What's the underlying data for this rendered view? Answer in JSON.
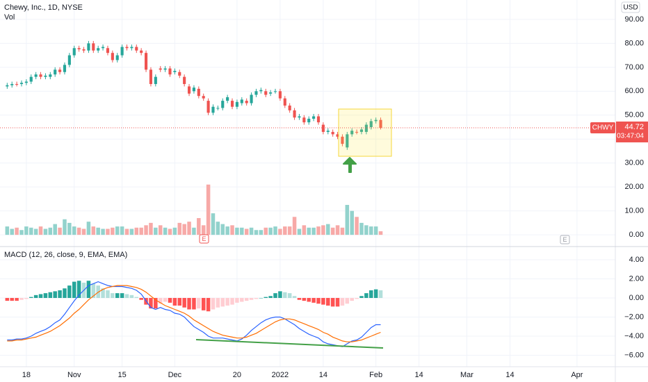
{
  "chart_data": {
    "type": "candlestick",
    "title": "Chewy, Inc., 1D, NYSE",
    "currency": "USD",
    "symbol": "CHWY",
    "countdown": "03:47:04",
    "grid": true,
    "up_color": "#26a69a",
    "down_color": "#ef5350",
    "xlim": [
      -1.5,
      127
    ],
    "xticks": [
      {
        "value": 4,
        "label": "18"
      },
      {
        "value": 14,
        "label": "Nov"
      },
      {
        "value": 24,
        "label": "15"
      },
      {
        "value": 35,
        "label": "Dec"
      },
      {
        "value": 48,
        "label": "20"
      },
      {
        "value": 57,
        "label": "2022"
      },
      {
        "value": 66,
        "label": "14"
      },
      {
        "value": 77,
        "label": "Feb"
      },
      {
        "value": 86,
        "label": "14"
      },
      {
        "value": 96,
        "label": "Mar"
      },
      {
        "value": 105,
        "label": "14"
      },
      {
        "value": 119,
        "label": "Apr"
      }
    ],
    "ylim": [
      -4.9,
      98.1
    ],
    "yticks": [
      {
        "value": 0,
        "label": "0.00"
      },
      {
        "value": 10,
        "label": "10.00"
      },
      {
        "value": 20,
        "label": "20.00"
      },
      {
        "value": 30,
        "label": "30.00"
      },
      {
        "value": 40,
        "label": "40.00"
      },
      {
        "value": 50,
        "label": "50.00"
      },
      {
        "value": 60,
        "label": "60.00"
      },
      {
        "value": 70,
        "label": "70.00"
      },
      {
        "value": 80,
        "label": "80.00"
      },
      {
        "value": 90,
        "label": "90.00"
      }
    ],
    "open": [
      62,
      62.5,
      63,
      63,
      63.5,
      64,
      66,
      67,
      66,
      66,
      67,
      69,
      68,
      71,
      75,
      78,
      77.5,
      77,
      80,
      77,
      78,
      78,
      76,
      73,
      75,
      78.5,
      78,
      78.5,
      77,
      76,
      69,
      63,
      69.5,
      69,
      69.5,
      68,
      68,
      66,
      62,
      60,
      61,
      58,
      56,
      51,
      53,
      53,
      56,
      56,
      53.5,
      55,
      56,
      55,
      58.5,
      60,
      60,
      59,
      60,
      60,
      57,
      54,
      52,
      49,
      49,
      47,
      48.5,
      49.5,
      46,
      43,
      43,
      42,
      41,
      36.5,
      42,
      43,
      43,
      43,
      45,
      47.5,
      48
    ],
    "high": [
      63.5,
      64,
      64,
      64.5,
      65,
      67,
      68,
      68,
      67.5,
      68,
      70,
      70,
      72,
      76,
      79,
      79,
      78.5,
      81,
      81,
      79,
      79.5,
      79,
      77,
      76,
      79.5,
      79.5,
      79.5,
      79.5,
      78,
      77,
      70,
      67,
      70.5,
      70.5,
      70.5,
      69.5,
      69,
      67,
      63,
      62.5,
      62,
      59,
      57,
      54.5,
      54,
      57,
      58.5,
      57,
      56.5,
      57.5,
      57,
      59.5,
      61,
      61.5,
      61,
      60.5,
      61,
      61,
      58,
      55,
      53,
      50.5,
      50,
      49.5,
      50.5,
      50.5,
      47,
      44.5,
      44,
      43,
      42,
      43,
      44.5,
      44,
      45,
      47,
      48.5,
      49,
      49
    ],
    "low": [
      61,
      61.5,
      62,
      62,
      62.5,
      63,
      65,
      65,
      65,
      65,
      66,
      67,
      67,
      70,
      74,
      76.5,
      76,
      76,
      76,
      76,
      77,
      75,
      72,
      72,
      74,
      77,
      77,
      76,
      75,
      68,
      62,
      62,
      68,
      68,
      66,
      67,
      65.5,
      62,
      58,
      59,
      57,
      56,
      50,
      50,
      52,
      52,
      55,
      52.5,
      52.5,
      54,
      54,
      54,
      57.5,
      59,
      57.5,
      58,
      59,
      56,
      53,
      51,
      48,
      48,
      46,
      46,
      47.5,
      46,
      42,
      42,
      41,
      40,
      37,
      35.5,
      41,
      42,
      42,
      42,
      44,
      46.5,
      44
    ],
    "close": [
      62.5,
      63,
      62.8,
      63.5,
      64,
      66,
      67,
      66,
      66.5,
      67,
      69,
      68,
      71,
      75,
      78,
      77.5,
      77,
      80,
      77,
      78,
      78.5,
      76,
      73,
      75,
      78.5,
      78,
      78.5,
      77,
      76,
      69,
      63,
      66,
      69,
      69.5,
      67,
      68.5,
      66.5,
      63,
      59,
      61.5,
      58,
      57,
      51,
      53.5,
      53,
      56,
      57.5,
      53.5,
      55.5,
      56.5,
      55,
      58.5,
      60,
      60.5,
      58.5,
      59.5,
      60,
      57,
      54,
      52,
      49,
      49.5,
      47,
      48.5,
      49.5,
      47,
      43,
      43.5,
      42,
      41,
      38,
      42,
      43.5,
      42.8,
      44,
      46,
      47.5,
      48,
      44.72
    ],
    "volume": {
      "name": "Vol",
      "up_color": "#92d2cc",
      "down_color": "#f7a9a7",
      "values": [
        3.5,
        2.5,
        3,
        2,
        3.5,
        3,
        2.5,
        3.5,
        2.5,
        3,
        4.5,
        3,
        6.5,
        5,
        3.5,
        3,
        2.5,
        5.5,
        3.5,
        3,
        2.5,
        2.5,
        3,
        3.5,
        3.5,
        2.5,
        2.5,
        3,
        3,
        4,
        5,
        3,
        4,
        3,
        2.5,
        3,
        5,
        4.5,
        5.5,
        3,
        7,
        4,
        21,
        9,
        5.5,
        4.5,
        3.5,
        4,
        3,
        3,
        2.5,
        3,
        2,
        2,
        3,
        3,
        3.5,
        2.5,
        3.5,
        3.5,
        7.5,
        2.5,
        4,
        3,
        3,
        3.5,
        4,
        4.5,
        3,
        4,
        3,
        12.5,
        10,
        7.5,
        5,
        4,
        3.5,
        3.5,
        1.5
      ]
    },
    "earnings_label": "E",
    "macd_panel": {
      "title": "MACD (12, 26, close, 9, EMA, EMA)",
      "ylim": [
        -7.2,
        5.38
      ],
      "yticks": [
        {
          "value": 4,
          "label": "4.00"
        },
        {
          "value": 2,
          "label": "2.00"
        },
        {
          "value": 0,
          "label": "0.00"
        },
        {
          "value": -2,
          "label": "−2.00"
        },
        {
          "value": -4,
          "label": "−4.00"
        },
        {
          "value": -6,
          "label": "−6.00"
        }
      ],
      "histogram": {
        "colors": [
          "#26a69a",
          "#b2dfdb",
          "#ff5252",
          "#ffcdd2"
        ],
        "values": [
          -0.3,
          -0.3,
          -0.3,
          -0.2,
          -0.1,
          0.1,
          0.3,
          0.4,
          0.5,
          0.6,
          0.7,
          0.8,
          1.0,
          1.3,
          1.7,
          1.8,
          1.6,
          1.8,
          1.5,
          1.3,
          1.0,
          0.8,
          0.5,
          0.5,
          0.5,
          0.4,
          0.3,
          0.1,
          -0.2,
          -0.7,
          -1.1,
          -1.1,
          -0.6,
          -0.4,
          -0.5,
          -0.8,
          -0.8,
          -1.0,
          -1.2,
          -1.2,
          -1.1,
          -1.3,
          -1.4,
          -1.2,
          -1.0,
          -0.9,
          -0.8,
          -0.7,
          -0.5,
          -0.4,
          -0.3,
          -0.2,
          -0.1,
          0.0,
          0.1,
          0.2,
          0.5,
          0.7,
          0.6,
          0.5,
          0.2,
          -0.2,
          -0.3,
          -0.4,
          -0.5,
          -0.6,
          -0.7,
          -0.8,
          -0.9,
          -0.9,
          -0.8,
          -0.6,
          -0.3,
          -0.1,
          0.2,
          0.5,
          0.8,
          0.9,
          0.8
        ]
      },
      "series": [
        {
          "color": "#2962ff",
          "values": [
            -4.4,
            -4.4,
            -4.3,
            -4.3,
            -4.2,
            -4.0,
            -3.7,
            -3.5,
            -3.3,
            -3.0,
            -2.6,
            -2.3,
            -1.7,
            -1.0,
            -0.3,
            0.3,
            0.8,
            1.3,
            1.5,
            1.7,
            1.5,
            1.3,
            1.2,
            1.2,
            1.2,
            1.1,
            1.0,
            0.8,
            0.4,
            -0.3,
            -1.0,
            -1.2,
            -1.0,
            -1.2,
            -1.3,
            -1.6,
            -1.7,
            -2.0,
            -2.5,
            -3.0,
            -3.3,
            -3.6,
            -4.0,
            -4.2,
            -4.2,
            -4.2,
            -4.3,
            -4.4,
            -4.5,
            -4.3,
            -3.9,
            -3.4,
            -3.0,
            -2.6,
            -2.3,
            -2.1,
            -2.0,
            -2.0,
            -2.2,
            -2.5,
            -2.8,
            -3.2,
            -3.5,
            -3.8,
            -4.0,
            -4.2,
            -4.6,
            -4.8,
            -4.9,
            -5.0,
            -5.1,
            -4.8,
            -4.5,
            -4.4,
            -4.1,
            -3.6,
            -3.1,
            -2.8,
            -2.8
          ]
        },
        {
          "color": "#ff6d00",
          "values": [
            -4.5,
            -4.5,
            -4.4,
            -4.4,
            -4.3,
            -4.2,
            -4.1,
            -3.9,
            -3.7,
            -3.5,
            -3.2,
            -2.9,
            -2.5,
            -2.1,
            -1.6,
            -1.2,
            -0.7,
            -0.2,
            0.2,
            0.6,
            0.9,
            1.1,
            1.2,
            1.3,
            1.3,
            1.3,
            1.2,
            1.1,
            0.9,
            0.6,
            0.2,
            -0.2,
            -0.5,
            -0.8,
            -1.0,
            -1.2,
            -1.4,
            -1.6,
            -1.9,
            -2.3,
            -2.6,
            -2.9,
            -3.2,
            -3.5,
            -3.7,
            -3.9,
            -4.0,
            -4.1,
            -4.2,
            -4.2,
            -4.1,
            -3.9,
            -3.7,
            -3.4,
            -3.1,
            -2.8,
            -2.5,
            -2.3,
            -2.2,
            -2.2,
            -2.3,
            -2.5,
            -2.7,
            -2.9,
            -3.1,
            -3.3,
            -3.6,
            -3.8,
            -4.1,
            -4.3,
            -4.5,
            -4.6,
            -4.6,
            -4.5,
            -4.4,
            -4.2,
            -4.0,
            -3.8,
            -3.6
          ]
        }
      ]
    }
  }
}
